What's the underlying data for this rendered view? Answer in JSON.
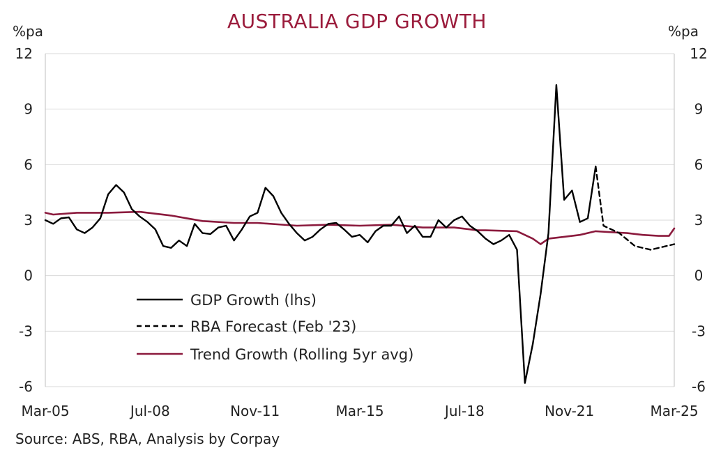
{
  "title": "AUSTRALIA GDP GROWTH",
  "source": "Source: ABS, RBA, Analysis by Corpay",
  "colors": {
    "title": "#9b1c3c",
    "gdp": "#000000",
    "forecast": "#000000",
    "trend": "#8b1a3d",
    "grid": "#d9d9d9",
    "axis": "#bfbfbf"
  },
  "chart_data": {
    "type": "line",
    "title": "AUSTRALIA GDP GROWTH",
    "y_left_label": "%pa",
    "y_right_label": "%pa",
    "ylim": [
      -6,
      12
    ],
    "yticks": [
      "12",
      "9",
      "6",
      "3",
      "0",
      "-3",
      "-6"
    ],
    "ytick_values": [
      12,
      9,
      6,
      3,
      0,
      -3,
      -6
    ],
    "xlim": [
      "Mar-05",
      "Mar-25"
    ],
    "xticks": [
      "Mar-05",
      "Jul-08",
      "Nov-11",
      "Mar-15",
      "Jul-18",
      "Nov-21",
      "Mar-25"
    ],
    "grid": "horizontal",
    "legend_position": "bottom-left",
    "series": [
      {
        "name": "GDP Growth (lhs)",
        "style": "solid",
        "color": "#000000",
        "x": [
          "Mar-05",
          "Jun-05",
          "Sep-05",
          "Dec-05",
          "Mar-06",
          "Jun-06",
          "Sep-06",
          "Dec-06",
          "Mar-07",
          "Jun-07",
          "Sep-07",
          "Dec-07",
          "Mar-08",
          "Jun-08",
          "Sep-08",
          "Dec-08",
          "Mar-09",
          "Jun-09",
          "Sep-09",
          "Dec-09",
          "Mar-10",
          "Jun-10",
          "Sep-10",
          "Dec-10",
          "Mar-11",
          "Jun-11",
          "Sep-11",
          "Dec-11",
          "Mar-12",
          "Jun-12",
          "Sep-12",
          "Dec-12",
          "Mar-13",
          "Jun-13",
          "Sep-13",
          "Dec-13",
          "Mar-14",
          "Jun-14",
          "Sep-14",
          "Dec-14",
          "Mar-15",
          "Jun-15",
          "Sep-15",
          "Dec-15",
          "Mar-16",
          "Jun-16",
          "Sep-16",
          "Dec-16",
          "Mar-17",
          "Jun-17",
          "Sep-17",
          "Dec-17",
          "Mar-18",
          "Jun-18",
          "Sep-18",
          "Dec-18",
          "Mar-19",
          "Jun-19",
          "Sep-19",
          "Dec-19",
          "Mar-20",
          "Jun-20",
          "Sep-20",
          "Dec-20",
          "Mar-21",
          "Jun-21",
          "Sep-21",
          "Dec-21",
          "Mar-22",
          "Jun-22",
          "Sep-22"
        ],
        "values": [
          3.0,
          2.8,
          3.1,
          3.15,
          2.5,
          2.3,
          2.6,
          3.1,
          4.4,
          4.9,
          4.5,
          3.6,
          3.2,
          2.9,
          2.5,
          1.6,
          1.5,
          1.9,
          1.6,
          2.8,
          2.3,
          2.25,
          2.6,
          2.7,
          1.9,
          2.5,
          3.2,
          3.4,
          4.75,
          4.3,
          3.4,
          2.8,
          2.3,
          1.9,
          2.1,
          2.5,
          2.8,
          2.85,
          2.5,
          2.1,
          2.2,
          1.8,
          2.4,
          2.7,
          2.7,
          3.2,
          2.3,
          2.7,
          2.1,
          2.1,
          3.0,
          2.6,
          3.0,
          3.2,
          2.7,
          2.4,
          2.0,
          1.7,
          1.9,
          2.2,
          1.4,
          -5.8,
          -3.7,
          -1.0,
          2.3,
          10.3,
          4.1,
          4.6,
          2.9,
          3.1,
          5.9
        ]
      },
      {
        "name": "RBA Forecast (Feb '23)",
        "style": "dashed",
        "color": "#000000",
        "x": [
          "Sep-22",
          "Dec-22",
          "Jun-23",
          "Dec-23",
          "Jun-24",
          "Dec-24",
          "Mar-25"
        ],
        "values": [
          5.9,
          2.7,
          2.3,
          1.6,
          1.4,
          1.6,
          1.7
        ]
      },
      {
        "name": "Trend Growth (Rolling 5yr avg)",
        "style": "solid",
        "color": "#8b1a3d",
        "x": [
          "Mar-05",
          "Jun-05",
          "Mar-06",
          "Mar-07",
          "Mar-08",
          "Mar-09",
          "Mar-10",
          "Mar-11",
          "Dec-11",
          "Mar-13",
          "Mar-14",
          "Mar-15",
          "Mar-16",
          "Mar-17",
          "Mar-18",
          "Dec-18",
          "Mar-19",
          "Mar-20",
          "Sep-20",
          "Dec-20",
          "Mar-21",
          "Sep-21",
          "Mar-22",
          "Sep-22",
          "Mar-23",
          "Sep-23",
          "Mar-24",
          "Sep-24",
          "Jan-25",
          "Mar-25"
        ],
        "values": [
          3.4,
          3.3,
          3.4,
          3.4,
          3.45,
          3.25,
          2.95,
          2.85,
          2.85,
          2.7,
          2.75,
          2.7,
          2.75,
          2.6,
          2.6,
          2.45,
          2.45,
          2.4,
          2.0,
          1.7,
          2.0,
          2.1,
          2.2,
          2.4,
          2.35,
          2.3,
          2.2,
          2.15,
          2.15,
          2.55
        ]
      }
    ]
  }
}
